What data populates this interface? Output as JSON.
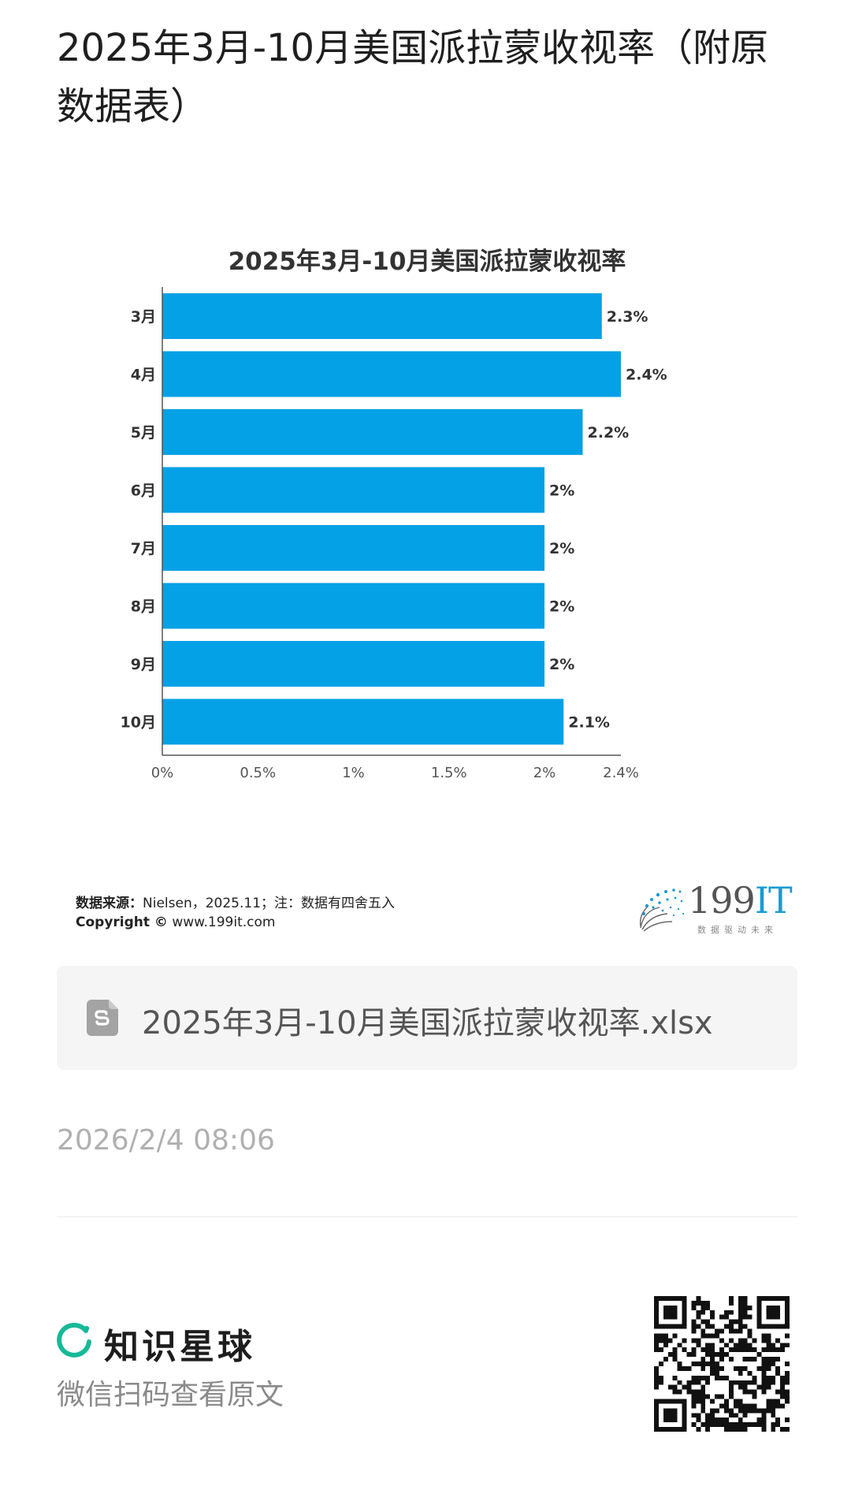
{
  "article": {
    "title": "2025年3月-10月美国派拉蒙收视率（附原数据表）",
    "timestamp": "2026/2/4 08:06"
  },
  "chart_data": {
    "type": "bar",
    "orientation": "horizontal",
    "title": "2025年3月-10月美国派拉蒙收视率",
    "categories": [
      "3月",
      "4月",
      "5月",
      "6月",
      "7月",
      "8月",
      "9月",
      "10月"
    ],
    "values": [
      2.3,
      2.4,
      2.2,
      2.0,
      2.0,
      2.0,
      2.0,
      2.1
    ],
    "value_labels": [
      "2.3%",
      "2.4%",
      "2.2%",
      "2%",
      "2%",
      "2%",
      "2%",
      "2.1%"
    ],
    "xticks": [
      0,
      0.5,
      1,
      1.5,
      2,
      2.4
    ],
    "xtick_labels": [
      "0%",
      "0.5%",
      "1%",
      "1.5%",
      "2%",
      "2.4%"
    ],
    "xlim": [
      0,
      2.4
    ],
    "grid": false,
    "bar_color": "#04A1E6",
    "source_label": "数据来源：",
    "source_text": "Nielsen，2025.11；注：数据有四舍五入",
    "copyright_label": "Copyright ©",
    "copyright_text": "www.199it.com"
  },
  "brand": {
    "number": "199",
    "suffix": "IT",
    "slogan": "数据驱动未来",
    "accent": "#1A9AD6"
  },
  "attachment": {
    "icon": "spreadsheet-file-icon",
    "file_name": "2025年3月-10月美国派拉蒙收视率.xlsx"
  },
  "footer": {
    "app_name": "知识星球",
    "scan_hint": "微信扫码查看原文",
    "accent": "#16B998",
    "qr_icon": "qr-code-icon"
  }
}
